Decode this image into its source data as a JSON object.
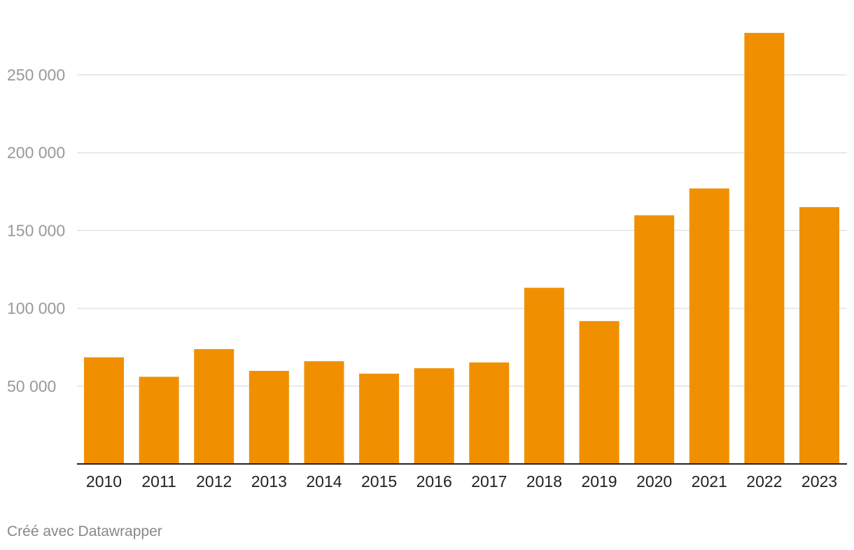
{
  "chart_data": {
    "type": "bar",
    "categories": [
      "2010",
      "2011",
      "2012",
      "2013",
      "2014",
      "2015",
      "2016",
      "2017",
      "2018",
      "2019",
      "2020",
      "2021",
      "2022",
      "2023"
    ],
    "values": [
      68500,
      56000,
      73800,
      59800,
      66000,
      58000,
      61500,
      65200,
      113200,
      91800,
      159800,
      177000,
      277000,
      165000
    ],
    "title": "",
    "xlabel": "",
    "ylabel": "",
    "ylim": [
      0,
      280000
    ],
    "yticks": [
      50000,
      100000,
      150000,
      200000,
      250000
    ],
    "ytick_labels": [
      "50 000",
      "100 000",
      "150 000",
      "200 000",
      "250 000"
    ],
    "grid": true,
    "bar_color": "#f09000"
  },
  "footer": {
    "credit": "Créé avec Datawrapper"
  }
}
